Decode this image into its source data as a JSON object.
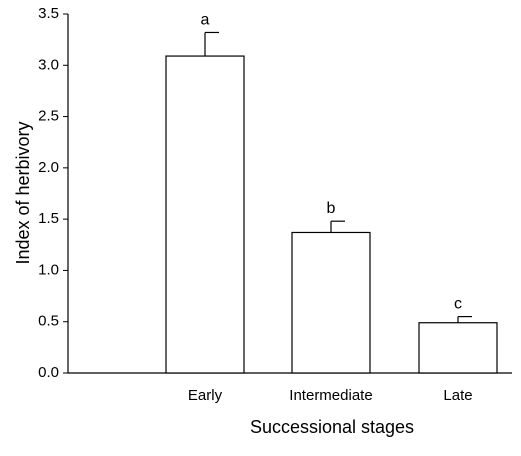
{
  "chart_data": {
    "type": "bar",
    "categories": [
      "Early",
      "Intermediate",
      "Late"
    ],
    "values": [
      3.09,
      1.37,
      0.49
    ],
    "errors": [
      0.23,
      0.11,
      0.06
    ],
    "significance_labels": [
      "a",
      "b",
      "c"
    ],
    "xlabel": "Successional stages",
    "ylabel": "Index of herbivory",
    "ylim": [
      0,
      3.5
    ],
    "yticks": [
      "0.0",
      "0.5",
      "1.0",
      "1.5",
      "2.0",
      "2.5",
      "3.0",
      "3.5"
    ],
    "grid": false,
    "bar_fill": "#ffffff",
    "bar_stroke": "#000000"
  }
}
